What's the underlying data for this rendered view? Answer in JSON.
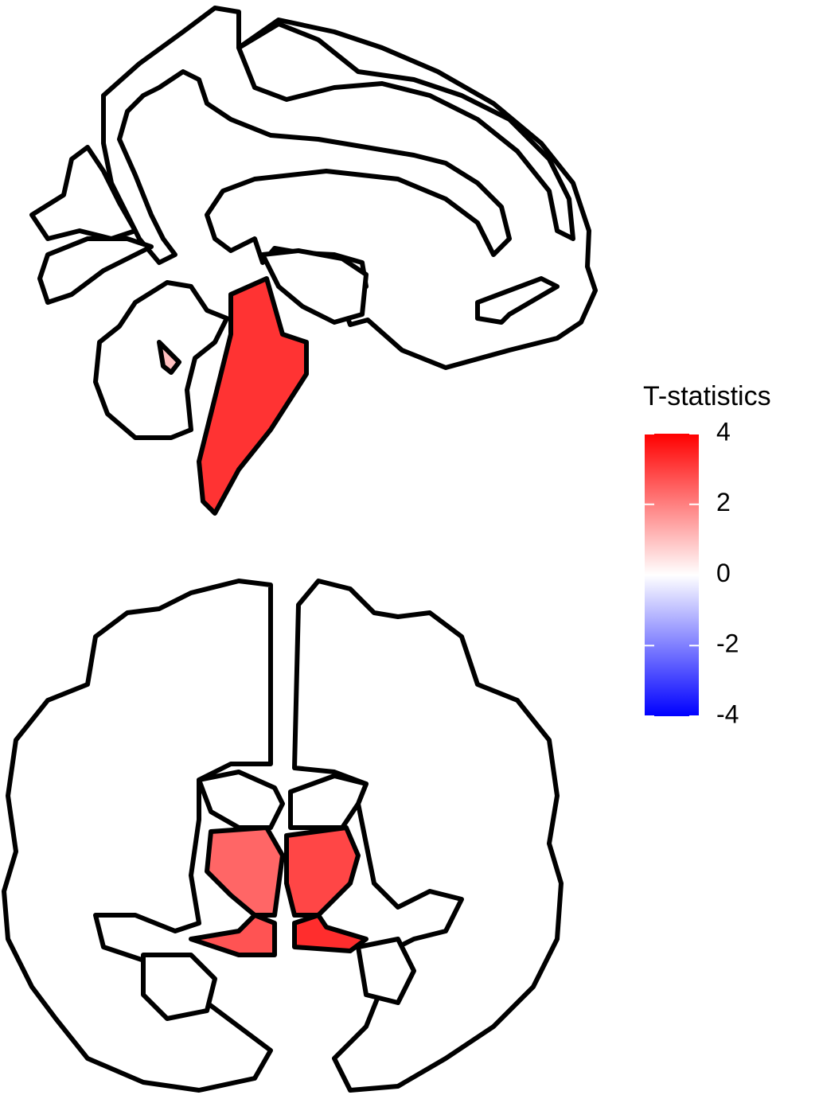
{
  "chart_data": {
    "type": "atlas",
    "legend_title": "T-statistics",
    "values": [
      3.2,
      1.0,
      2.4,
      2.9,
      2.7,
      3.3
    ],
    "clim": [
      -4,
      4
    ],
    "cticks": [
      4,
      2,
      0,
      -2,
      -4
    ],
    "colorscale": [
      "#0000ff",
      "#ffffff",
      "#ff0000"
    ]
  }
}
